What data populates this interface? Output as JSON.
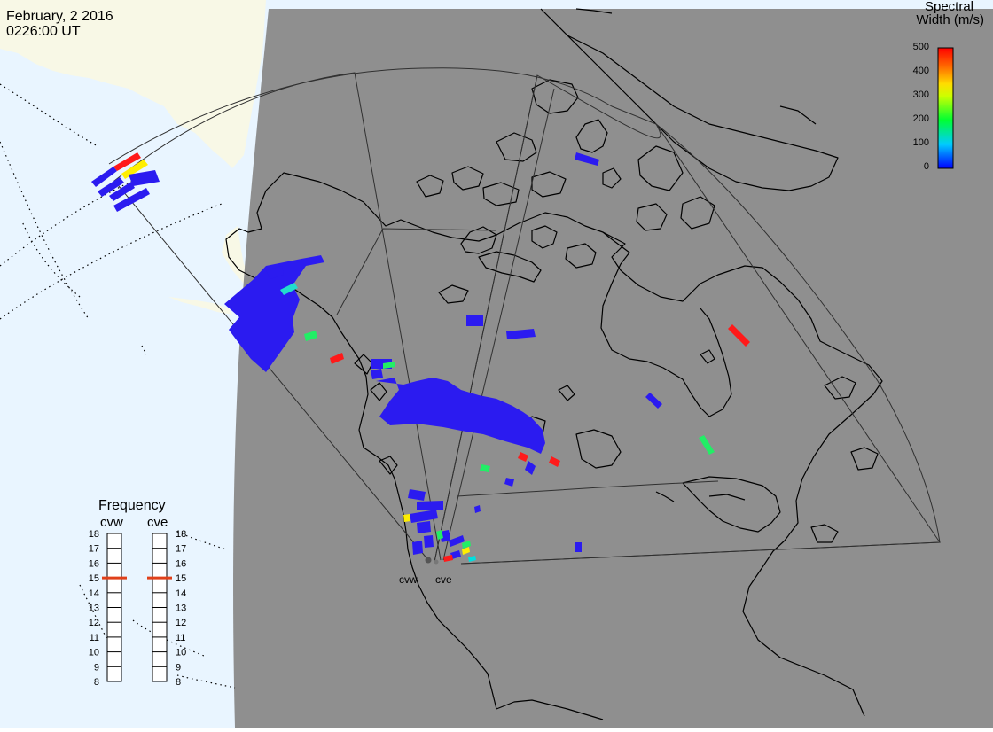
{
  "date": "February, 2 2016",
  "time": "0226:00 UT",
  "colorbar": {
    "title_line1": "Spectral",
    "title_line2": "Width (m/s)",
    "ticks": [
      "500",
      "400",
      "300",
      "200",
      "100",
      "0"
    ],
    "range": [
      0,
      500
    ]
  },
  "radars": [
    "cvw",
    "cve"
  ],
  "frequency": {
    "title": "Frequency",
    "columns": [
      "cvw",
      "cve"
    ],
    "ticks": [
      "18",
      "17",
      "16",
      "15",
      "14",
      "13",
      "12",
      "11",
      "10",
      "9",
      "8"
    ],
    "range_mhz": [
      8,
      18
    ],
    "current_mhz": {
      "cvw": 15,
      "cve": 15
    }
  },
  "colors": {
    "night": "#8f8f8f",
    "ocean": "#e9f5ff",
    "land": "#f8f8e6",
    "marker": "#e0401a"
  }
}
